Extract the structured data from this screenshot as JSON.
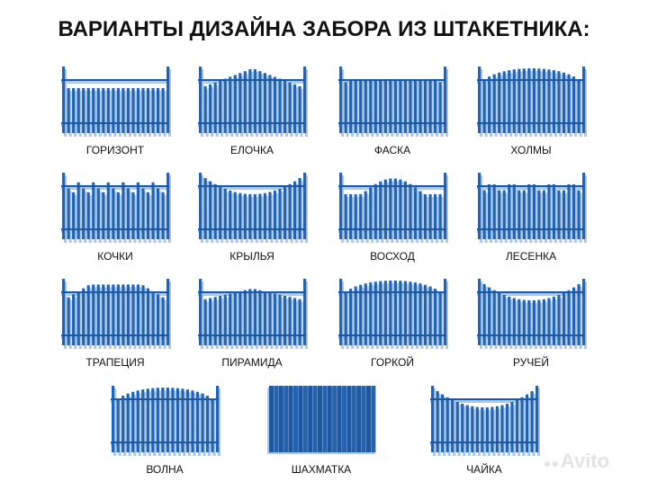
{
  "title": "ВАРИАНТЫ ДИЗАЙНА ЗАБОРА ИЗ ШТАКЕТНИКА:",
  "colors": {
    "picket": "#2563ad",
    "picket_shadow": "#a9caee",
    "text": "#111111"
  },
  "variants": [
    {
      "label": "ГОРИЗОНТ",
      "profile": "flat"
    },
    {
      "label": "ЕЛОЧКА",
      "profile": "peak"
    },
    {
      "label": "ФАСКА",
      "profile": "bevel"
    },
    {
      "label": "ХОЛМЫ",
      "profile": "hill"
    },
    {
      "label": "КОЧКИ",
      "profile": "bumps"
    },
    {
      "label": "КРЫЛЬЯ",
      "profile": "valley"
    },
    {
      "label": "ВОСХОД",
      "profile": "sunrise"
    },
    {
      "label": "ЛЕСЕНКА",
      "profile": "steps"
    },
    {
      "label": "ТРАПЕЦИЯ",
      "profile": "trapezoid"
    },
    {
      "label": "ПИРАМИДА",
      "profile": "pyramid"
    },
    {
      "label": "ГОРКОЙ",
      "profile": "hill"
    },
    {
      "label": "РУЧЕЙ",
      "profile": "valley"
    },
    {
      "label": "ВОЛНА",
      "profile": "hill"
    },
    {
      "label": "ШАХМАТКА",
      "profile": "panel"
    },
    {
      "label": "ЧАЙКА",
      "profile": "valley"
    }
  ],
  "watermark": "Avito"
}
